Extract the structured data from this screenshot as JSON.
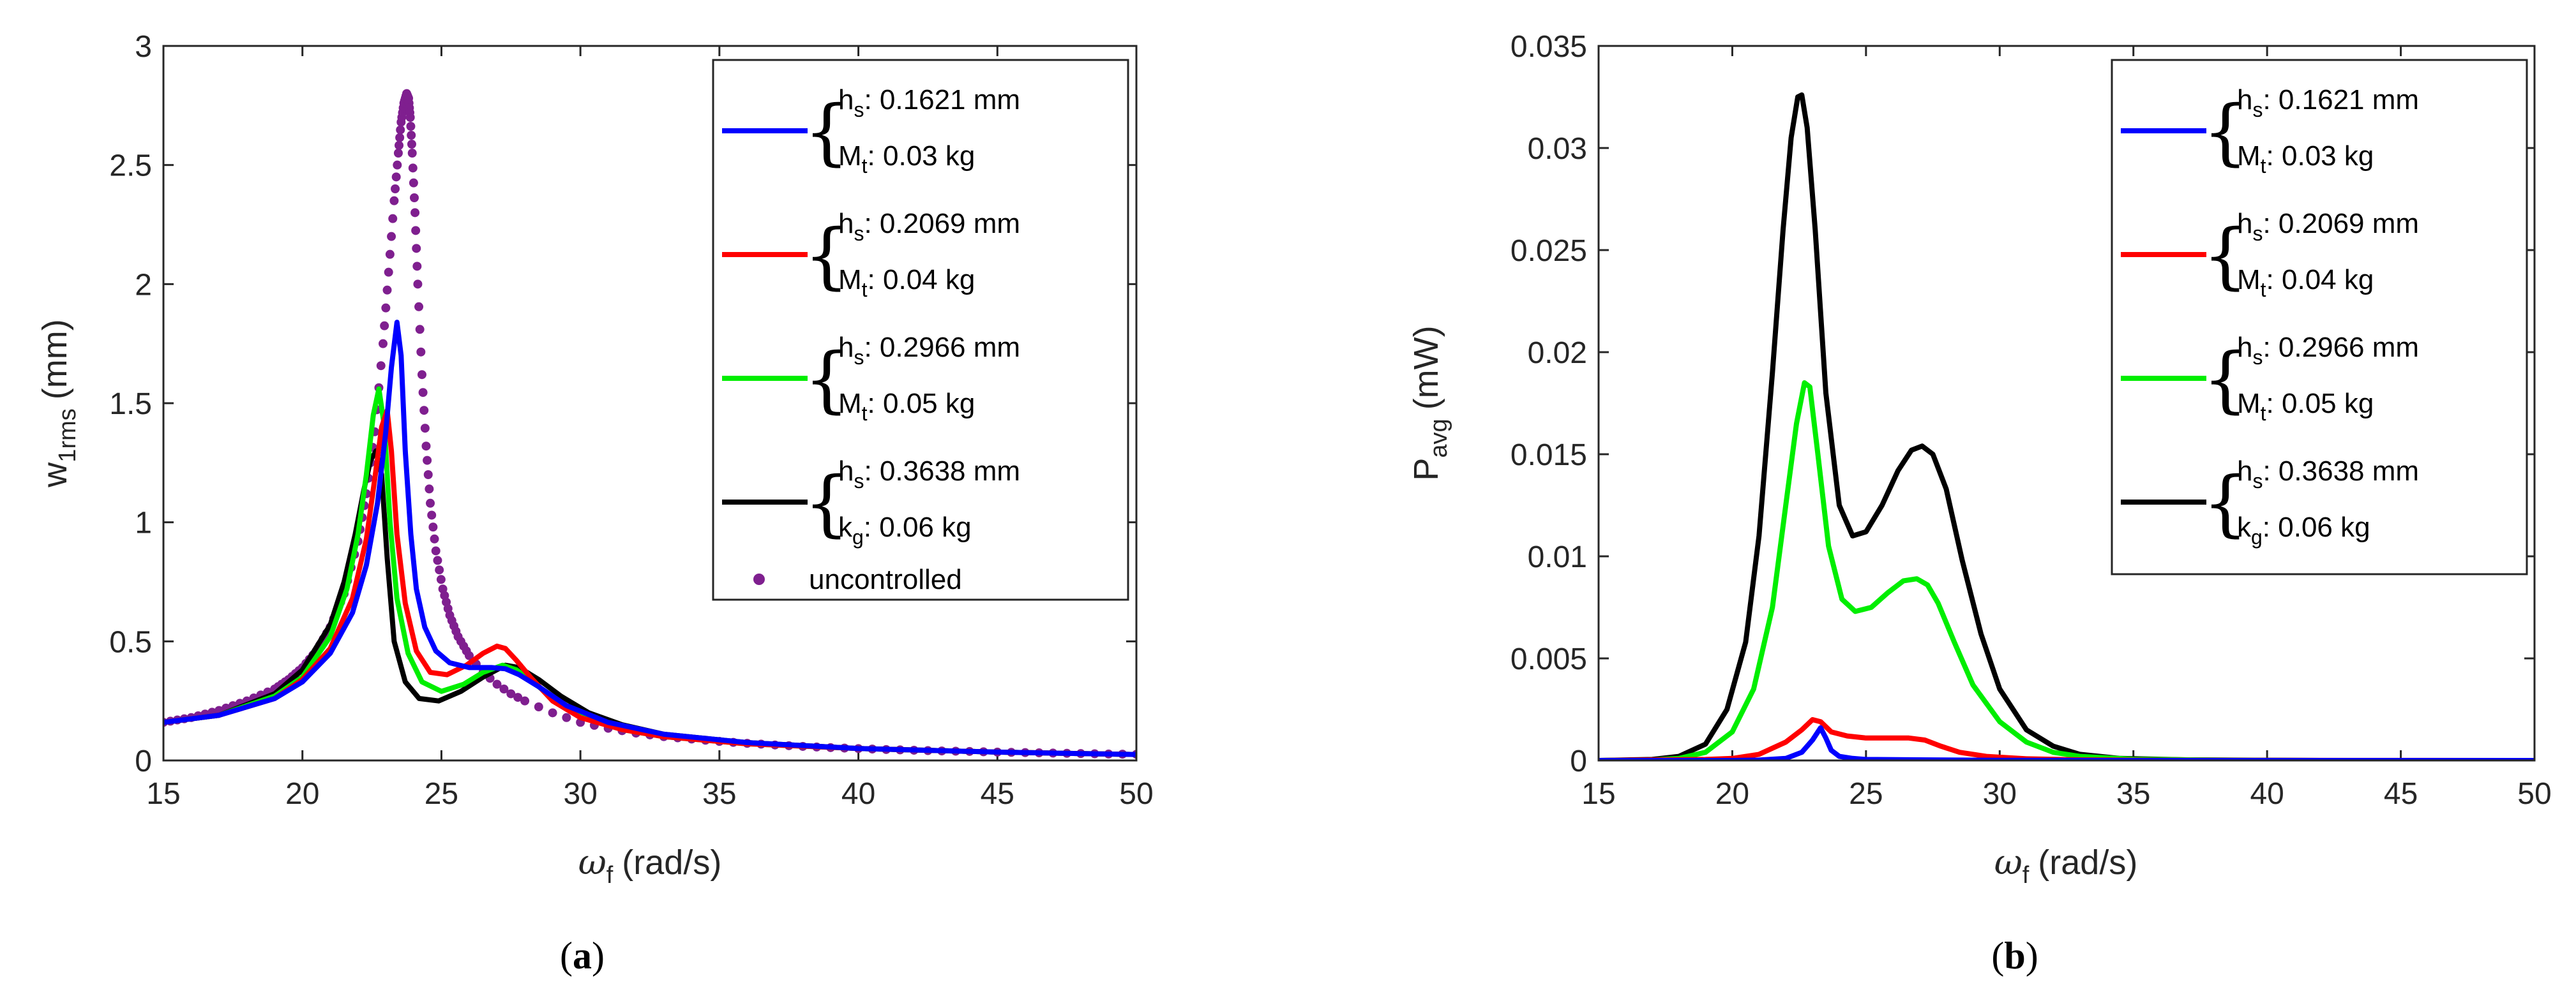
{
  "chart_data": [
    {
      "id": "a",
      "type": "line",
      "caption": "(a)",
      "xlabel": "(rad/s)",
      "xlabel_symbol": "ω",
      "xlabel_sub": "f",
      "ylabel": "(mm)",
      "ylabel_symbol": "w",
      "ylabel_sub": "1rms",
      "xlim": [
        15,
        50
      ],
      "ylim": [
        0,
        3
      ],
      "xticks": [
        15,
        20,
        25,
        30,
        35,
        40,
        45,
        50
      ],
      "yticks": [
        0,
        0.5,
        1,
        1.5,
        2,
        2.5,
        3
      ],
      "ytick_labels": [
        "0",
        "0.5",
        "1",
        "1.5",
        "2",
        "2.5",
        "3"
      ],
      "legend_position": "top-right",
      "series": [
        {
          "name": "hs 0.1621 mm, Mt 0.03 kg",
          "color": "#0000ff",
          "style": "line",
          "legend": {
            "l1": "h",
            "l1sub": "s",
            "l1val": ": 0.1621 mm",
            "l2": "M",
            "l2sub": "t",
            "l2val": ": 0.03 kg"
          },
          "x": [
            15,
            17,
            19,
            20,
            21,
            21.8,
            22.3,
            22.7,
            23,
            23.2,
            23.4,
            23.55,
            23.7,
            23.9,
            24.1,
            24.4,
            24.8,
            25.3,
            26,
            26.8,
            27.3,
            27.8,
            28.5,
            29.5,
            31,
            33,
            36,
            40,
            45,
            50
          ],
          "y": [
            0.16,
            0.19,
            0.26,
            0.33,
            0.45,
            0.62,
            0.82,
            1.08,
            1.38,
            1.65,
            1.84,
            1.7,
            1.3,
            0.95,
            0.72,
            0.56,
            0.46,
            0.41,
            0.39,
            0.39,
            0.385,
            0.36,
            0.31,
            0.23,
            0.16,
            0.11,
            0.075,
            0.05,
            0.035,
            0.025
          ]
        },
        {
          "name": "hs 0.2069 mm, Mt 0.04 kg",
          "color": "#ff0000",
          "style": "line",
          "legend": {
            "l1": "h",
            "l1sub": "s",
            "l1val": ": 0.2069 mm",
            "l2": "M",
            "l2sub": "t",
            "l2val": ": 0.04 kg"
          },
          "x": [
            15,
            17,
            19,
            20,
            21,
            21.8,
            22.3,
            22.6,
            22.85,
            23.05,
            23.2,
            23.4,
            23.7,
            24.1,
            24.6,
            25.2,
            25.9,
            26.5,
            27,
            27.3,
            27.7,
            28.2,
            29,
            30,
            31.5,
            33,
            36,
            40,
            45,
            50
          ],
          "y": [
            0.16,
            0.19,
            0.26,
            0.34,
            0.47,
            0.68,
            0.93,
            1.18,
            1.4,
            1.47,
            1.3,
            0.95,
            0.66,
            0.46,
            0.37,
            0.36,
            0.4,
            0.45,
            0.48,
            0.47,
            0.42,
            0.35,
            0.25,
            0.18,
            0.13,
            0.1,
            0.07,
            0.05,
            0.035,
            0.025
          ]
        },
        {
          "name": "hs 0.2966 mm, Mt 0.05 kg",
          "color": "#00ee00",
          "style": "line",
          "legend": {
            "l1": "h",
            "l1sub": "s",
            "l1val": ": 0.2966 mm",
            "l2": "M",
            "l2sub": "t",
            "l2val": ": 0.05 kg"
          },
          "x": [
            15,
            17,
            19,
            20,
            21,
            21.6,
            22,
            22.3,
            22.55,
            22.75,
            22.95,
            23.15,
            23.4,
            23.8,
            24.3,
            25,
            25.8,
            26.5,
            27.2,
            27.7,
            28.3,
            29,
            30,
            31.5,
            33,
            36,
            40,
            45,
            50
          ],
          "y": [
            0.16,
            0.19,
            0.27,
            0.35,
            0.52,
            0.72,
            0.95,
            1.2,
            1.45,
            1.56,
            1.4,
            1.0,
            0.68,
            0.45,
            0.33,
            0.29,
            0.32,
            0.37,
            0.4,
            0.38,
            0.33,
            0.26,
            0.19,
            0.13,
            0.1,
            0.07,
            0.05,
            0.035,
            0.025
          ]
        },
        {
          "name": "hs 0.3638 mm, kg 0.06 kg",
          "color": "#000000",
          "style": "line",
          "legend": {
            "l1": "h",
            "l1sub": "s",
            "l1val": ": 0.3638 mm",
            "l2": "k",
            "l2sub": "g",
            "l2val": ": 0.06 kg"
          },
          "x": [
            15,
            17,
            19,
            20,
            21,
            21.5,
            21.9,
            22.2,
            22.45,
            22.65,
            22.85,
            23.05,
            23.3,
            23.7,
            24.2,
            24.9,
            25.7,
            26.5,
            27.3,
            27.8,
            28.5,
            29.3,
            30.3,
            31.5,
            33,
            36,
            40,
            45,
            50
          ],
          "y": [
            0.16,
            0.19,
            0.28,
            0.38,
            0.57,
            0.75,
            0.95,
            1.13,
            1.26,
            1.3,
            1.2,
            0.85,
            0.5,
            0.33,
            0.26,
            0.25,
            0.29,
            0.35,
            0.4,
            0.39,
            0.34,
            0.27,
            0.2,
            0.15,
            0.11,
            0.075,
            0.05,
            0.035,
            0.025
          ]
        },
        {
          "name": "uncontrolled",
          "color": "#7f1f8f",
          "style": "dots",
          "legend": {
            "label": "uncontrolled"
          },
          "x": [
            15,
            16,
            17,
            18,
            19,
            19.5,
            20,
            20.5,
            21,
            21.5,
            22,
            22.3,
            22.6,
            22.9,
            23.1,
            23.3,
            23.45,
            23.55,
            23.65,
            23.75,
            23.82,
            23.88,
            23.95,
            24.05,
            24.15,
            24.3,
            24.45,
            24.6,
            24.8,
            25.05,
            25.3,
            25.6,
            26,
            26.5,
            27,
            27.5,
            28,
            29,
            30,
            31,
            32,
            33,
            34,
            35,
            36,
            37,
            38,
            39,
            40,
            41,
            42,
            43,
            44,
            45,
            46,
            47,
            48,
            49,
            50
          ],
          "y": [
            0.16,
            0.18,
            0.21,
            0.25,
            0.3,
            0.34,
            0.39,
            0.46,
            0.56,
            0.7,
            0.92,
            1.12,
            1.38,
            1.75,
            2.05,
            2.35,
            2.55,
            2.68,
            2.76,
            2.8,
            2.78,
            2.7,
            2.55,
            2.3,
            2.0,
            1.62,
            1.32,
            1.08,
            0.88,
            0.72,
            0.61,
            0.52,
            0.44,
            0.37,
            0.32,
            0.28,
            0.25,
            0.2,
            0.16,
            0.135,
            0.115,
            0.1,
            0.09,
            0.08,
            0.072,
            0.065,
            0.059,
            0.054,
            0.05,
            0.046,
            0.043,
            0.04,
            0.038,
            0.035,
            0.033,
            0.031,
            0.029,
            0.027,
            0.026
          ]
        }
      ]
    },
    {
      "id": "b",
      "type": "line",
      "caption": "(b)",
      "xlabel": "(rad/s)",
      "xlabel_symbol": "ω",
      "xlabel_sub": "f",
      "ylabel": "(mW)",
      "ylabel_symbol": "P",
      "ylabel_sub": "avg",
      "xlim": [
        15,
        50
      ],
      "ylim": [
        0,
        0.035
      ],
      "xticks": [
        15,
        20,
        25,
        30,
        35,
        40,
        45,
        50
      ],
      "yticks": [
        0,
        0.005,
        0.01,
        0.015,
        0.02,
        0.025,
        0.03,
        0.035
      ],
      "ytick_labels": [
        "0",
        "0.005",
        "0.01",
        "0.015",
        "0.02",
        "0.025",
        "0.03",
        "0.035"
      ],
      "legend_position": "top-right",
      "series": [
        {
          "name": "hs 0.1621 mm, Mt 0.03 kg",
          "color": "#0000ff",
          "style": "line",
          "legend": {
            "l1": "h",
            "l1sub": "s",
            "l1val": ": 0.1621 mm",
            "l2": "M",
            "l2sub": "t",
            "l2val": ": 0.03 kg"
          },
          "x": [
            15,
            20,
            21,
            22,
            22.6,
            23,
            23.3,
            23.5,
            23.7,
            24,
            24.5,
            25,
            27,
            30,
            35,
            50
          ],
          "y": [
            0,
            0,
            2e-05,
            0.0001,
            0.0004,
            0.001,
            0.0016,
            0.0011,
            0.0005,
            0.0002,
            0.0001,
            5e-05,
            3e-05,
            1e-05,
            0,
            0
          ]
        },
        {
          "name": "hs 0.2069 mm, Mt 0.04 kg",
          "color": "#ff0000",
          "style": "line",
          "legend": {
            "l1": "h",
            "l1sub": "s",
            "l1val": ": 0.2069 mm",
            "l2": "M",
            "l2sub": "t",
            "l2val": ": 0.04 kg"
          },
          "x": [
            15,
            19,
            20,
            21,
            22,
            22.6,
            23,
            23.3,
            23.7,
            24.3,
            25,
            26,
            26.6,
            27.2,
            27.8,
            28.5,
            29.5,
            31,
            33,
            36,
            50
          ],
          "y": [
            0,
            5e-05,
            0.0001,
            0.0003,
            0.0009,
            0.0015,
            0.002,
            0.0019,
            0.0014,
            0.0012,
            0.0011,
            0.0011,
            0.0011,
            0.001,
            0.0007,
            0.0004,
            0.0002,
            8e-05,
            3e-05,
            1e-05,
            0
          ]
        },
        {
          "name": "hs 0.2966 mm, Mt 0.05 kg",
          "color": "#00ee00",
          "style": "line",
          "legend": {
            "l1": "h",
            "l1sub": "s",
            "l1val": ": 0.2966 mm",
            "l2": "M",
            "l2sub": "t",
            "l2val": ": 0.05 kg"
          },
          "x": [
            15,
            17,
            18,
            19,
            20,
            20.8,
            21.5,
            22,
            22.4,
            22.7,
            22.9,
            23.2,
            23.6,
            24.1,
            24.6,
            25.2,
            25.8,
            26.4,
            26.9,
            27.3,
            27.7,
            28.3,
            29,
            30,
            31,
            32,
            33,
            35,
            38,
            42,
            50
          ],
          "y": [
            0,
            2e-05,
            0.0001,
            0.0004,
            0.0014,
            0.0035,
            0.0075,
            0.0125,
            0.0165,
            0.0185,
            0.0183,
            0.015,
            0.0105,
            0.0079,
            0.0073,
            0.0075,
            0.0082,
            0.0088,
            0.0089,
            0.0086,
            0.0077,
            0.0058,
            0.0037,
            0.0019,
            0.0009,
            0.0004,
            0.0002,
            6e-05,
            2e-05,
            0,
            0
          ]
        },
        {
          "name": "hs 0.3638 mm, kg 0.06 kg",
          "color": "#000000",
          "style": "line",
          "legend": {
            "l1": "h",
            "l1sub": "s",
            "l1val": ": 0.3638 mm",
            "l2": "k",
            "l2sub": "g",
            "l2val": ": 0.06 kg"
          },
          "x": [
            15,
            17,
            18,
            19,
            19.8,
            20.5,
            21,
            21.5,
            21.9,
            22.2,
            22.45,
            22.6,
            22.8,
            23.1,
            23.5,
            24,
            24.5,
            25,
            25.6,
            26.2,
            26.7,
            27.1,
            27.5,
            28,
            28.6,
            29.3,
            30,
            31,
            32,
            33,
            34.5,
            37,
            42,
            50
          ],
          "y": [
            0,
            5e-05,
            0.0002,
            0.0008,
            0.0025,
            0.0058,
            0.011,
            0.019,
            0.026,
            0.0305,
            0.0325,
            0.0326,
            0.031,
            0.026,
            0.018,
            0.0125,
            0.011,
            0.0112,
            0.0125,
            0.0142,
            0.0152,
            0.0154,
            0.015,
            0.0133,
            0.0098,
            0.0062,
            0.0035,
            0.0015,
            0.0007,
            0.0003,
            0.0001,
            3e-05,
            0,
            0
          ]
        }
      ]
    }
  ]
}
